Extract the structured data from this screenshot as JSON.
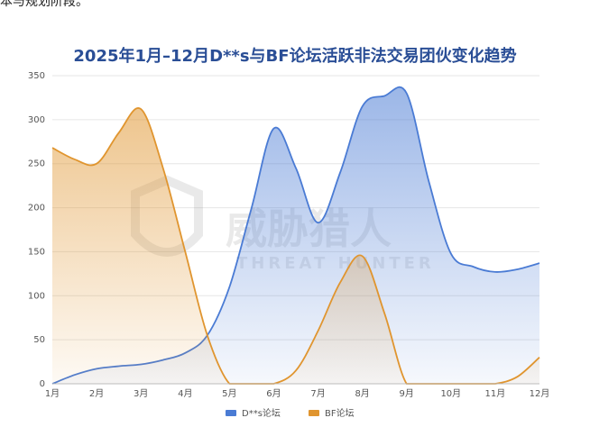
{
  "snippet": "本与规划阶段。",
  "chart_data": {
    "type": "area",
    "title": "2025年1月–12月D**s与BF论坛活跃非法交易团伙变化趋势",
    "categories": [
      "1月",
      "2月",
      "3月",
      "4月",
      "5月",
      "6月",
      "7月",
      "8月",
      "9月",
      "10月",
      "11月",
      "12月"
    ],
    "ylim": [
      0,
      350
    ],
    "yticks": [
      0,
      50,
      100,
      150,
      200,
      250,
      300,
      350
    ],
    "grid": true,
    "legend_position": "bottom",
    "series": [
      {
        "name": "D**s论坛",
        "color": "#4a7bd4",
        "x": [
          1,
          1.5,
          2,
          2.5,
          3,
          3.5,
          4,
          4.5,
          5,
          5.5,
          6,
          6.5,
          7,
          7.5,
          8,
          8.5,
          9,
          9.5,
          10,
          10.5,
          11,
          11.5,
          12
        ],
        "values": [
          0,
          10,
          17,
          20,
          22,
          27,
          35,
          55,
          110,
          200,
          290,
          245,
          183,
          240,
          315,
          327,
          330,
          230,
          148,
          133,
          127,
          130,
          137
        ]
      },
      {
        "name": "BF论坛",
        "color": "#e0952f",
        "x": [
          1,
          1.5,
          2,
          2.5,
          3,
          3.5,
          4,
          4.5,
          5,
          5.5,
          6,
          6.5,
          7,
          7.5,
          8,
          8.5,
          9,
          9.5,
          10,
          10.5,
          11,
          11.5,
          12
        ],
        "values": [
          268,
          255,
          250,
          285,
          312,
          245,
          150,
          55,
          0,
          0,
          0,
          15,
          60,
          115,
          145,
          80,
          0,
          0,
          0,
          0,
          0,
          8,
          30
        ]
      }
    ]
  },
  "watermark": {
    "name": "威胁猎人",
    "subtitle": "THREAT HUNTER"
  }
}
